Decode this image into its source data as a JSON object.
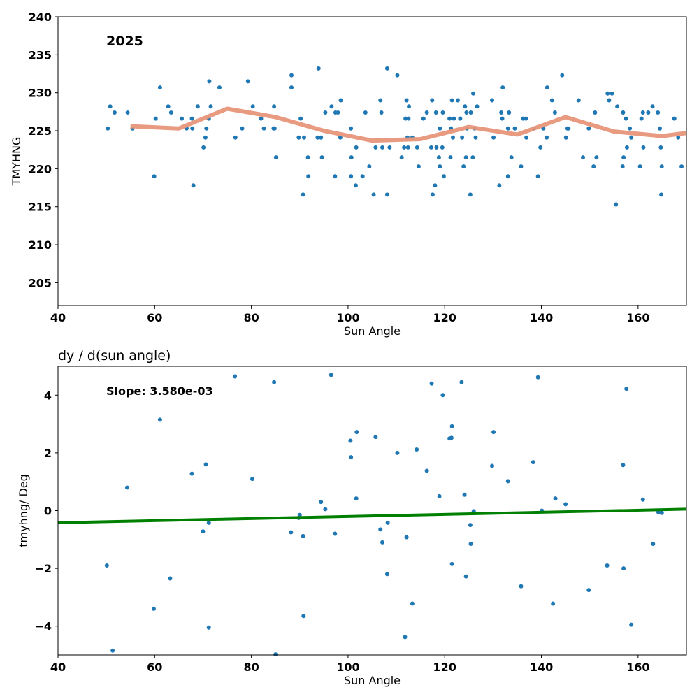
{
  "colors": {
    "points": "#1f77b4",
    "trend_top": "#e8967a",
    "fit_bottom": "#008000",
    "axes": "#000000"
  },
  "chart_data": [
    {
      "type": "scatter",
      "annotation": "2025",
      "xlabel": "Sun Angle",
      "ylabel": "TMYHNG",
      "xlim": [
        40,
        170
      ],
      "ylim": [
        202,
        240
      ],
      "xticks": [
        40,
        60,
        80,
        100,
        120,
        140,
        160
      ],
      "yticks": [
        205,
        210,
        215,
        220,
        225,
        230,
        235,
        240
      ],
      "grid": false,
      "points": [
        [
          50.3,
          225.3
        ],
        [
          50.8,
          228.2
        ],
        [
          51.7,
          227.4
        ],
        [
          54.4,
          227.4
        ],
        [
          55.4,
          225.3
        ],
        [
          59.9,
          219.0
        ],
        [
          60.2,
          226.6
        ],
        [
          61.1,
          230.7
        ],
        [
          62.8,
          228.2
        ],
        [
          63.4,
          227.4
        ],
        [
          65.6,
          226.6
        ],
        [
          66.6,
          225.3
        ],
        [
          67.7,
          226.6
        ],
        [
          67.8,
          225.3
        ],
        [
          68.0,
          217.8
        ],
        [
          68.9,
          228.2
        ],
        [
          70.1,
          222.8
        ],
        [
          70.5,
          224.1
        ],
        [
          70.7,
          225.3
        ],
        [
          71.2,
          226.6
        ],
        [
          71.3,
          231.5
        ],
        [
          71.6,
          228.2
        ],
        [
          73.4,
          230.7
        ],
        [
          76.7,
          224.1
        ],
        [
          78.1,
          225.3
        ],
        [
          79.3,
          231.5
        ],
        [
          80.3,
          228.2
        ],
        [
          82.0,
          226.6
        ],
        [
          82.6,
          225.3
        ],
        [
          84.6,
          225.3
        ],
        [
          84.7,
          228.2
        ],
        [
          84.8,
          225.3
        ],
        [
          85.1,
          221.5
        ],
        [
          88.3,
          232.3
        ],
        [
          88.3,
          230.7
        ],
        [
          89.8,
          224.1
        ],
        [
          90.2,
          226.6
        ],
        [
          90.7,
          216.6
        ],
        [
          90.9,
          224.1
        ],
        [
          91.7,
          221.5
        ],
        [
          91.8,
          219.0
        ],
        [
          93.7,
          224.1
        ],
        [
          93.9,
          233.2
        ],
        [
          94.4,
          224.1
        ],
        [
          94.6,
          221.5
        ],
        [
          95.3,
          227.4
        ],
        [
          96.6,
          228.2
        ],
        [
          97.3,
          219.0
        ],
        [
          97.4,
          227.4
        ],
        [
          97.9,
          227.4
        ],
        [
          98.5,
          229.0
        ],
        [
          98.4,
          224.1
        ],
        [
          100.6,
          219.0
        ],
        [
          100.6,
          225.3
        ],
        [
          100.7,
          221.5
        ],
        [
          101.6,
          217.8
        ],
        [
          101.7,
          222.8
        ],
        [
          103.0,
          219.0
        ],
        [
          103.6,
          227.4
        ],
        [
          104.4,
          220.3
        ],
        [
          105.3,
          216.6
        ],
        [
          105.7,
          222.8
        ],
        [
          106.7,
          229.0
        ],
        [
          106.9,
          227.4
        ],
        [
          107.1,
          222.8
        ],
        [
          108.1,
          216.6
        ],
        [
          108.1,
          233.2
        ],
        [
          108.6,
          222.8
        ],
        [
          110.2,
          232.3
        ],
        [
          111.1,
          221.5
        ],
        [
          111.6,
          222.8
        ],
        [
          111.9,
          226.6
        ],
        [
          112.1,
          229.0
        ],
        [
          112.3,
          224.1
        ],
        [
          112.4,
          222.8
        ],
        [
          112.5,
          226.6
        ],
        [
          112.6,
          228.2
        ],
        [
          113.3,
          224.1
        ],
        [
          114.3,
          222.8
        ],
        [
          114.6,
          220.3
        ],
        [
          115.6,
          226.6
        ],
        [
          116.3,
          227.4
        ],
        [
          117.2,
          222.8
        ],
        [
          117.4,
          229.0
        ],
        [
          117.5,
          216.6
        ],
        [
          118.0,
          217.8
        ],
        [
          118.2,
          227.4
        ],
        [
          118.3,
          222.8
        ],
        [
          118.8,
          221.5
        ],
        [
          119.0,
          225.3
        ],
        [
          119.0,
          220.3
        ],
        [
          119.5,
          222.8
        ],
        [
          119.6,
          227.4
        ],
        [
          119.8,
          219.0
        ],
        [
          121.0,
          226.6
        ],
        [
          121.2,
          221.5
        ],
        [
          121.3,
          225.3
        ],
        [
          121.5,
          229.0
        ],
        [
          121.7,
          224.1
        ],
        [
          121.9,
          226.6
        ],
        [
          122.7,
          229.0
        ],
        [
          123.2,
          226.6
        ],
        [
          123.6,
          224.1
        ],
        [
          123.9,
          220.3
        ],
        [
          124.2,
          228.2
        ],
        [
          124.4,
          221.5
        ],
        [
          124.5,
          227.4
        ],
        [
          124.6,
          225.3
        ],
        [
          125.3,
          216.6
        ],
        [
          125.4,
          227.4
        ],
        [
          125.8,
          221.5
        ],
        [
          125.9,
          229.9
        ],
        [
          126.2,
          225.3
        ],
        [
          126.7,
          228.2
        ],
        [
          126.4,
          224.1
        ],
        [
          129.8,
          229.0
        ],
        [
          130.1,
          224.1
        ],
        [
          131.3,
          217.8
        ],
        [
          131.7,
          227.4
        ],
        [
          131.9,
          226.6
        ],
        [
          132.0,
          230.7
        ],
        [
          133.1,
          225.3
        ],
        [
          133.1,
          219.0
        ],
        [
          133.3,
          227.4
        ],
        [
          133.8,
          221.5
        ],
        [
          134.5,
          225.3
        ],
        [
          135.8,
          220.3
        ],
        [
          136.2,
          226.6
        ],
        [
          136.8,
          226.6
        ],
        [
          136.9,
          224.1
        ],
        [
          138.5,
          225.3
        ],
        [
          139.3,
          219.0
        ],
        [
          139.8,
          222.8
        ],
        [
          140.4,
          225.3
        ],
        [
          141.1,
          224.1
        ],
        [
          141.2,
          230.7
        ],
        [
          142.2,
          229.0
        ],
        [
          142.8,
          227.4
        ],
        [
          144.3,
          232.3
        ],
        [
          145.1,
          224.1
        ],
        [
          145.4,
          225.3
        ],
        [
          145.6,
          225.3
        ],
        [
          147.7,
          229.0
        ],
        [
          148.6,
          221.5
        ],
        [
          149.8,
          225.3
        ],
        [
          150.8,
          220.3
        ],
        [
          151.1,
          227.4
        ],
        [
          151.4,
          221.5
        ],
        [
          153.7,
          229.9
        ],
        [
          154.0,
          229.0
        ],
        [
          154.6,
          229.9
        ],
        [
          155.4,
          215.3
        ],
        [
          155.7,
          228.2
        ],
        [
          156.8,
          220.3
        ],
        [
          156.9,
          227.4
        ],
        [
          157.0,
          221.5
        ],
        [
          157.5,
          226.6
        ],
        [
          157.7,
          222.8
        ],
        [
          158.3,
          225.3
        ],
        [
          158.6,
          224.1
        ],
        [
          160.4,
          220.3
        ],
        [
          160.7,
          226.6
        ],
        [
          161.0,
          227.4
        ],
        [
          161.1,
          222.8
        ],
        [
          162.1,
          227.4
        ],
        [
          163.0,
          228.2
        ],
        [
          164.1,
          227.4
        ],
        [
          164.5,
          225.3
        ],
        [
          164.7,
          222.8
        ],
        [
          164.8,
          216.6
        ],
        [
          164.9,
          220.3
        ],
        [
          167.5,
          226.6
        ],
        [
          168.3,
          224.1
        ],
        [
          169.0,
          220.3
        ]
      ],
      "trend": [
        [
          55.0,
          225.6
        ],
        [
          65.0,
          225.3
        ],
        [
          75.0,
          227.9
        ],
        [
          85.0,
          226.8
        ],
        [
          95.0,
          225.0
        ],
        [
          105.0,
          223.7
        ],
        [
          115.0,
          223.9
        ],
        [
          125.0,
          225.5
        ],
        [
          135.0,
          224.5
        ],
        [
          145.0,
          226.8
        ],
        [
          155.0,
          224.9
        ],
        [
          165.0,
          224.3
        ],
        [
          170.0,
          224.7
        ]
      ]
    },
    {
      "type": "scatter",
      "title": "dy / d(sun angle)",
      "annotation": "Slope: 3.580e-03",
      "xlabel": "Sun Angle",
      "ylabel": "tmyhng/ Deg",
      "xlim": [
        40,
        170
      ],
      "ylim": [
        -5,
        5
      ],
      "xticks": [
        40,
        60,
        80,
        100,
        120,
        140,
        160
      ],
      "yticks": [
        -4,
        -2,
        0,
        2,
        4
      ],
      "ytick_labels": [
        "−4",
        "−2",
        "0",
        "2",
        "4"
      ],
      "grid": false,
      "points": [
        [
          50.1,
          -1.9
        ],
        [
          51.3,
          -4.85
        ],
        [
          54.3,
          0.8
        ],
        [
          59.8,
          -3.4
        ],
        [
          61.1,
          3.15
        ],
        [
          63.2,
          -2.35
        ],
        [
          67.7,
          1.28
        ],
        [
          70.0,
          -0.72
        ],
        [
          70.6,
          1.6
        ],
        [
          71.2,
          -0.42
        ],
        [
          71.2,
          -4.05
        ],
        [
          76.6,
          4.65
        ],
        [
          80.2,
          1.1
        ],
        [
          84.7,
          4.45
        ],
        [
          85.0,
          -4.98
        ],
        [
          88.2,
          -0.75
        ],
        [
          89.8,
          -0.25
        ],
        [
          90.0,
          -0.15
        ],
        [
          90.7,
          -0.88
        ],
        [
          90.8,
          -3.65
        ],
        [
          94.4,
          0.3
        ],
        [
          95.3,
          0.05
        ],
        [
          96.5,
          4.7
        ],
        [
          97.3,
          -0.8
        ],
        [
          100.5,
          2.42
        ],
        [
          100.6,
          1.85
        ],
        [
          101.7,
          0.42
        ],
        [
          101.8,
          2.72
        ],
        [
          105.7,
          2.55
        ],
        [
          106.7,
          -0.65
        ],
        [
          107.1,
          -1.1
        ],
        [
          108.1,
          -2.2
        ],
        [
          108.2,
          -0.42
        ],
        [
          110.2,
          2.0
        ],
        [
          111.8,
          -4.38
        ],
        [
          112.1,
          -0.92
        ],
        [
          113.3,
          -3.22
        ],
        [
          114.2,
          2.12
        ],
        [
          116.3,
          1.38
        ],
        [
          117.3,
          4.4
        ],
        [
          118.9,
          0.5
        ],
        [
          119.6,
          4.0
        ],
        [
          121.0,
          2.5
        ],
        [
          121.4,
          2.52
        ],
        [
          121.5,
          2.92
        ],
        [
          121.5,
          -1.85
        ],
        [
          123.5,
          4.45
        ],
        [
          124.1,
          0.55
        ],
        [
          124.4,
          -2.28
        ],
        [
          125.3,
          -0.5
        ],
        [
          125.4,
          -1.15
        ],
        [
          126.0,
          -0.02
        ],
        [
          129.8,
          1.55
        ],
        [
          130.1,
          2.72
        ],
        [
          133.1,
          1.02
        ],
        [
          135.8,
          -2.62
        ],
        [
          138.3,
          1.68
        ],
        [
          139.3,
          4.62
        ],
        [
          140.1,
          0.0
        ],
        [
          142.4,
          -3.22
        ],
        [
          142.9,
          0.42
        ],
        [
          145.0,
          0.22
        ],
        [
          149.8,
          -2.75
        ],
        [
          153.6,
          -1.9
        ],
        [
          156.9,
          1.58
        ],
        [
          157.0,
          -2.0
        ],
        [
          157.6,
          4.22
        ],
        [
          158.6,
          -3.95
        ],
        [
          161.0,
          0.38
        ],
        [
          163.1,
          -1.15
        ],
        [
          164.2,
          -0.05
        ],
        [
          164.9,
          -0.08
        ]
      ],
      "fit": {
        "x": [
          40,
          170
        ],
        "y": [
          -0.42,
          0.05
        ]
      }
    }
  ]
}
